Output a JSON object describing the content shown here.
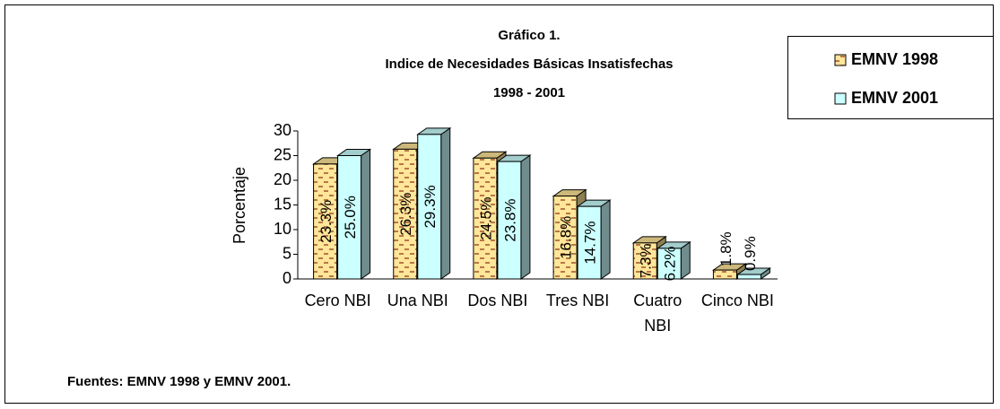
{
  "chart_data": {
    "type": "bar3d",
    "title": [
      "Gráfico 1.",
      "Indice de Necesidades Básicas Insatisfechas",
      "1998 - 2001"
    ],
    "ylabel": "Porcentaje",
    "categories": [
      "Cero NBI",
      "Una NBI",
      "Dos NBI",
      "Tres NBI",
      "Cuatro NBI",
      "Cinco NBI"
    ],
    "series": [
      {
        "name": "EMNV 1998",
        "color": "#ffe699",
        "values": [
          23.3,
          26.3,
          24.5,
          16.8,
          7.3,
          1.8
        ],
        "value_labels": [
          "23.3%",
          "26.3%",
          "24.5%",
          "16.8%",
          "7.3%",
          "1.8%"
        ]
      },
      {
        "name": "EMNV 2001",
        "color": "#ccffff",
        "values": [
          25.0,
          29.3,
          23.8,
          14.7,
          6.2,
          0.9
        ],
        "value_labels": [
          "25.0%",
          "29.3%",
          "23.8%",
          "14.7%",
          "6.2%",
          "0.9%"
        ]
      }
    ],
    "ylim": [
      0,
      30
    ],
    "yticks": [
      0,
      5,
      10,
      15,
      20,
      25,
      30
    ],
    "legend": "top-right",
    "note": "Fuentes: EMNV 1998 y EMNV 2001."
  }
}
